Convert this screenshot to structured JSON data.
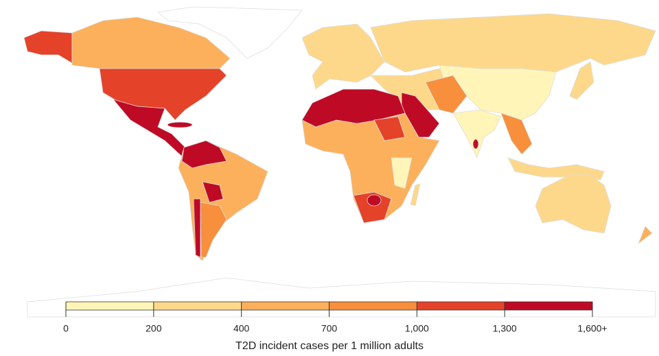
{
  "legend": {
    "title": "T2D incident cases per 1 million adults",
    "ticks": [
      0,
      200,
      400,
      700,
      {
        "value": 1000,
        "label": "1,000"
      },
      {
        "value": 1300,
        "label": "1,300"
      },
      {
        "value": 1600,
        "label": "1,600+"
      }
    ],
    "colors": [
      "#fff5b8",
      "#fdd88a",
      "#fcb05b",
      "#f78f3d",
      "#e5422a",
      "#bf0a26"
    ]
  }
}
